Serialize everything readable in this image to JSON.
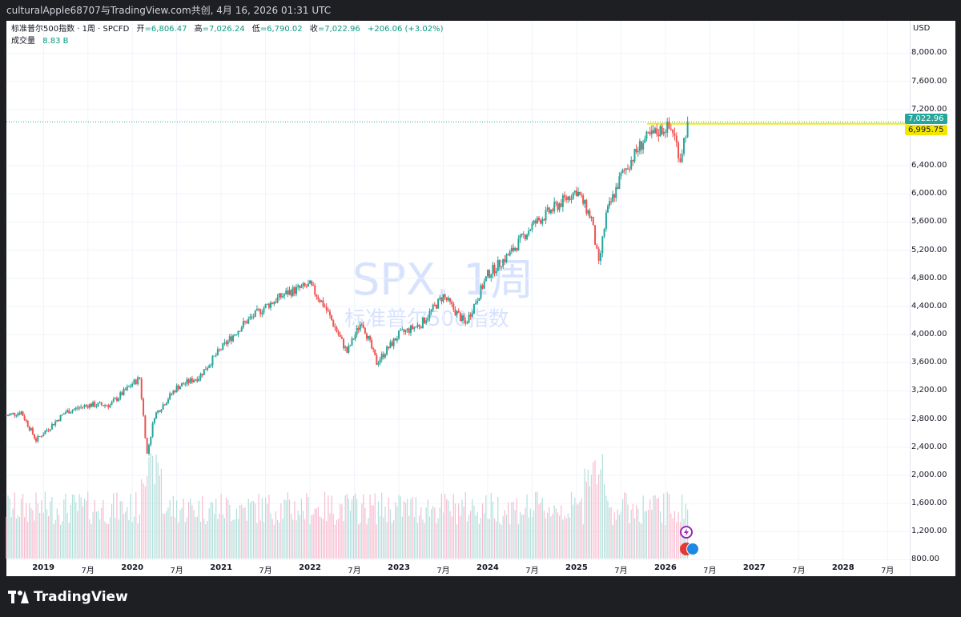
{
  "header": {
    "shared_text": "culturalApple68707与TradingView.com共创,  4月 16, 2026 01:31 UTC"
  },
  "legend": {
    "symbol": "标准普尔500指数 · 1周 · SPCFD",
    "open_label": "开",
    "open": "=6,806.47",
    "high_label": "高",
    "high": "=7,026.24",
    "low_label": "低",
    "low": "=6,790.02",
    "close_label": "收",
    "close": "=7,022.96",
    "change": "+206.06 (+3.02%)",
    "volume_label": "成交量",
    "volume": "8.83 B"
  },
  "watermark": {
    "line1": "SPX, 1周",
    "line2": "标准普尔500指数"
  },
  "price_axis": {
    "currency": "USD",
    "ticks": [
      "8,000.00",
      "7,600.00",
      "7,200.00",
      "6,400.00",
      "6,000.00",
      "5,600.00",
      "5,200.00",
      "4,800.00",
      "4,400.00",
      "4,000.00",
      "3,600.00",
      "3,200.00",
      "2,800.00",
      "2,400.00",
      "2,000.00",
      "1,600.00",
      "1,200.00",
      "800.00"
    ]
  },
  "time_axis": {
    "labels": [
      {
        "t": "2019",
        "year": true
      },
      {
        "t": "7月",
        "year": false
      },
      {
        "t": "2020",
        "year": true
      },
      {
        "t": "7月",
        "year": false
      },
      {
        "t": "2021",
        "year": true
      },
      {
        "t": "7月",
        "year": false
      },
      {
        "t": "2022",
        "year": true
      },
      {
        "t": "7月",
        "year": false
      },
      {
        "t": "2023",
        "year": true
      },
      {
        "t": "7月",
        "year": false
      },
      {
        "t": "2024",
        "year": true
      },
      {
        "t": "7月",
        "year": false
      },
      {
        "t": "2025",
        "year": true
      },
      {
        "t": "7月",
        "year": false
      },
      {
        "t": "2026",
        "year": true
      },
      {
        "t": "7月",
        "year": false
      },
      {
        "t": "2027",
        "year": true
      },
      {
        "t": "7月",
        "year": false
      },
      {
        "t": "2028",
        "year": true
      },
      {
        "t": "7月",
        "year": false
      }
    ]
  },
  "badges": {
    "last_price": "7,022.96",
    "alert_price": "6,995.75"
  },
  "colors": {
    "up": "#26a69a",
    "down": "#ef5350",
    "alert_line": "#f2e600",
    "last_line": "#26a69a"
  },
  "brand": {
    "name": "TradingView"
  },
  "chart_data": {
    "type": "candlestick",
    "title": "SPX, 1周",
    "y_range": [
      600,
      8300
    ],
    "x_range": [
      "2018-08",
      "2028-10"
    ],
    "volume_range_label": "成交量",
    "series": [
      {
        "name": "标准普尔500指数",
        "points": [
          [
            "2018-08",
            2850
          ],
          [
            "2018-10",
            2900
          ],
          [
            "2018-12",
            2500
          ],
          [
            "2019-01",
            2600
          ],
          [
            "2019-04",
            2900
          ],
          [
            "2019-07",
            3000
          ],
          [
            "2019-10",
            3000
          ],
          [
            "2020-01",
            3300
          ],
          [
            "2020-02",
            3380
          ],
          [
            "2020-03",
            2300
          ],
          [
            "2020-04",
            2850
          ],
          [
            "2020-07",
            3250
          ],
          [
            "2020-10",
            3400
          ],
          [
            "2021-01",
            3800
          ],
          [
            "2021-04",
            4150
          ],
          [
            "2021-07",
            4400
          ],
          [
            "2021-10",
            4600
          ],
          [
            "2022-01",
            4700
          ],
          [
            "2022-03",
            4400
          ],
          [
            "2022-06",
            3750
          ],
          [
            "2022-08",
            4200
          ],
          [
            "2022-10",
            3600
          ],
          [
            "2023-01",
            4000
          ],
          [
            "2023-04",
            4150
          ],
          [
            "2023-07",
            4550
          ],
          [
            "2023-10",
            4150
          ],
          [
            "2024-01",
            4850
          ],
          [
            "2024-04",
            5150
          ],
          [
            "2024-07",
            5550
          ],
          [
            "2024-10",
            5800
          ],
          [
            "2025-01",
            6050
          ],
          [
            "2025-03",
            5650
          ],
          [
            "2025-04",
            4980
          ],
          [
            "2025-05",
            5700
          ],
          [
            "2025-07",
            6250
          ],
          [
            "2025-10",
            6750
          ],
          [
            "2026-01",
            6950
          ],
          [
            "2026-02",
            6900
          ],
          [
            "2026-03",
            6500
          ],
          [
            "2026-04",
            7022.96
          ]
        ]
      }
    ],
    "last_close": 7022.96,
    "alert_level": 6995.75,
    "last_volume_billions": 8.83
  }
}
